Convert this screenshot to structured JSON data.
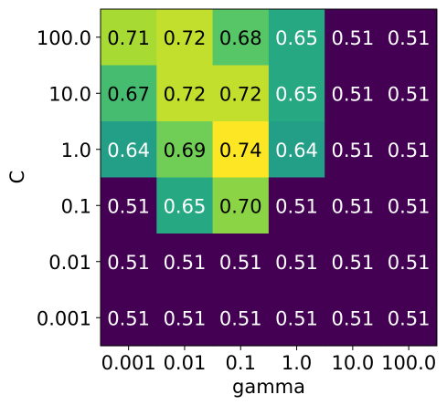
{
  "chart_data": {
    "type": "heatmap",
    "xlabel": "gamma",
    "ylabel": "C",
    "x_categories": [
      "0.001",
      "0.01",
      "0.1",
      "1.0",
      "10.0",
      "100.0"
    ],
    "y_categories": [
      "100.0",
      "10.0",
      "1.0",
      "0.1",
      "0.01",
      "0.001"
    ],
    "values": [
      [
        0.71,
        0.72,
        0.68,
        0.65,
        0.51,
        0.51
      ],
      [
        0.67,
        0.72,
        0.72,
        0.65,
        0.51,
        0.51
      ],
      [
        0.64,
        0.69,
        0.74,
        0.64,
        0.51,
        0.51
      ],
      [
        0.51,
        0.65,
        0.7,
        0.51,
        0.51,
        0.51
      ],
      [
        0.51,
        0.51,
        0.51,
        0.51,
        0.51,
        0.51
      ],
      [
        0.51,
        0.51,
        0.51,
        0.51,
        0.51,
        0.51
      ]
    ],
    "value_format": "0.00",
    "colormap": "viridis",
    "value_range": [
      0.51,
      0.74
    ],
    "grid": false,
    "legend": "none"
  }
}
